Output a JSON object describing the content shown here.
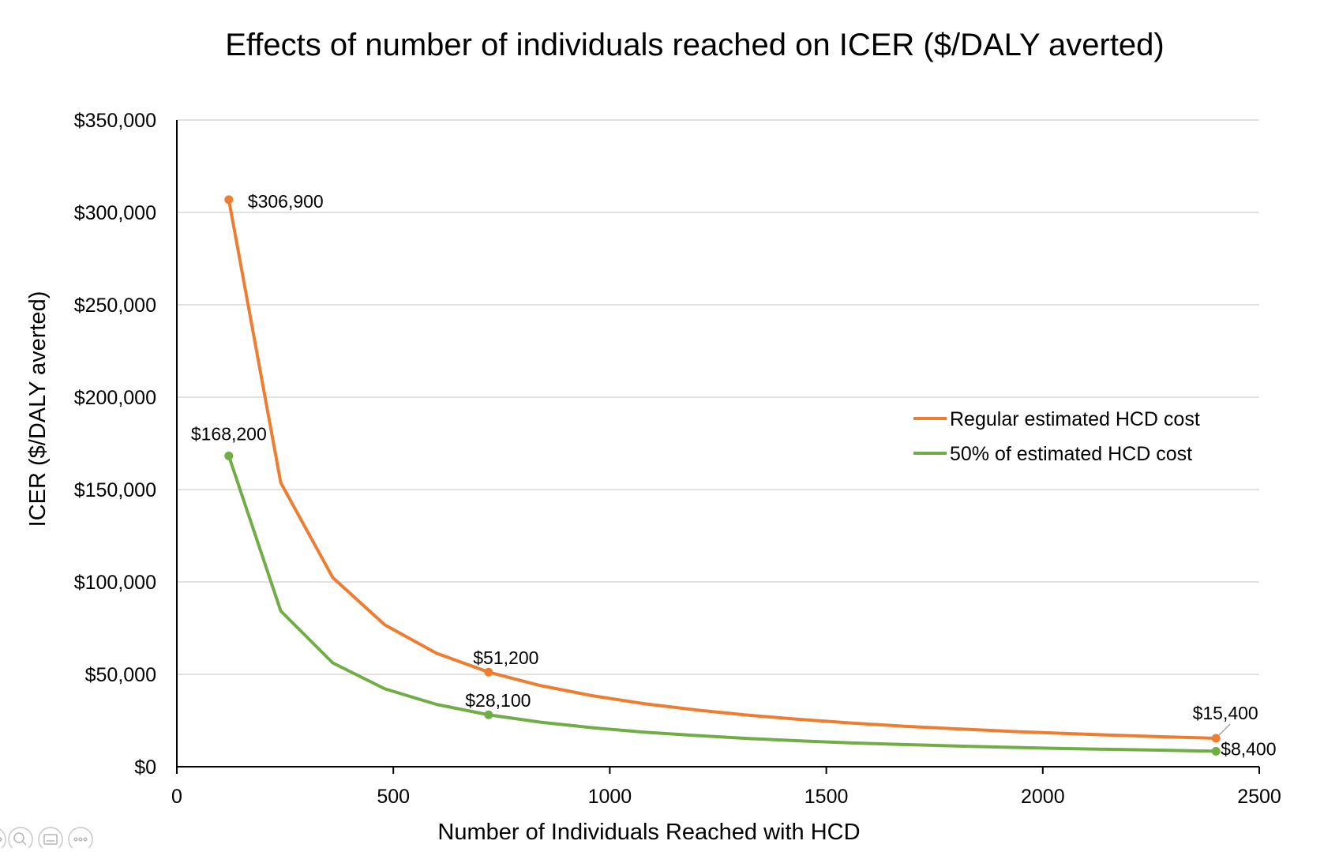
{
  "chart_data": {
    "type": "line",
    "title": "Effects of number of individuals reached on ICER ($/DALY averted)",
    "xlabel": "Number of Individuals Reached with HCD",
    "ylabel": "ICER ($/DALY averted)",
    "xlim": [
      0,
      2500
    ],
    "ylim": [
      0,
      350000
    ],
    "x_ticks": [
      0,
      500,
      1000,
      1500,
      2000,
      2500
    ],
    "y_ticks": [
      0,
      50000,
      100000,
      150000,
      200000,
      250000,
      300000,
      350000
    ],
    "y_tick_labels": [
      "$0",
      "$50,000",
      "$100,000",
      "$150,000",
      "$200,000",
      "$250,000",
      "$300,000",
      "$350,000"
    ],
    "grid": "horizontal",
    "legend_position": "right",
    "x": [
      120,
      240,
      360,
      480,
      600,
      720,
      840,
      960,
      1080,
      1200,
      1320,
      1440,
      1560,
      1680,
      1800,
      1920,
      2040,
      2160,
      2280,
      2400
    ],
    "series": [
      {
        "name": "Regular estimated HCD cost",
        "color": "#ed7d31",
        "values": [
          306900,
          153700,
          102400,
          76800,
          61400,
          51200,
          43900,
          38400,
          34100,
          30700,
          27900,
          25600,
          23600,
          21900,
          20500,
          19200,
          18100,
          17100,
          16200,
          15400
        ]
      },
      {
        "name": "50% of estimated HCD cost",
        "color": "#70ad47",
        "values": [
          168200,
          84300,
          56200,
          42200,
          33700,
          28100,
          24100,
          21100,
          18700,
          16900,
          15300,
          14000,
          12900,
          12000,
          11200,
          10500,
          9900,
          9400,
          8900,
          8400
        ]
      }
    ],
    "data_labels": [
      {
        "series": 0,
        "point": 0,
        "text": "$306,900"
      },
      {
        "series": 0,
        "point": 5,
        "text": "$51,200"
      },
      {
        "series": 0,
        "point": 19,
        "text": "$15,400"
      },
      {
        "series": 1,
        "point": 0,
        "text": "$168,200"
      },
      {
        "series": 1,
        "point": 5,
        "text": "$28,100"
      },
      {
        "series": 1,
        "point": 19,
        "text": "$8,400"
      }
    ]
  },
  "viewer_controls": {
    "icons": [
      "nav-icon",
      "zoom-icon",
      "slide-icon",
      "more-icon"
    ]
  }
}
